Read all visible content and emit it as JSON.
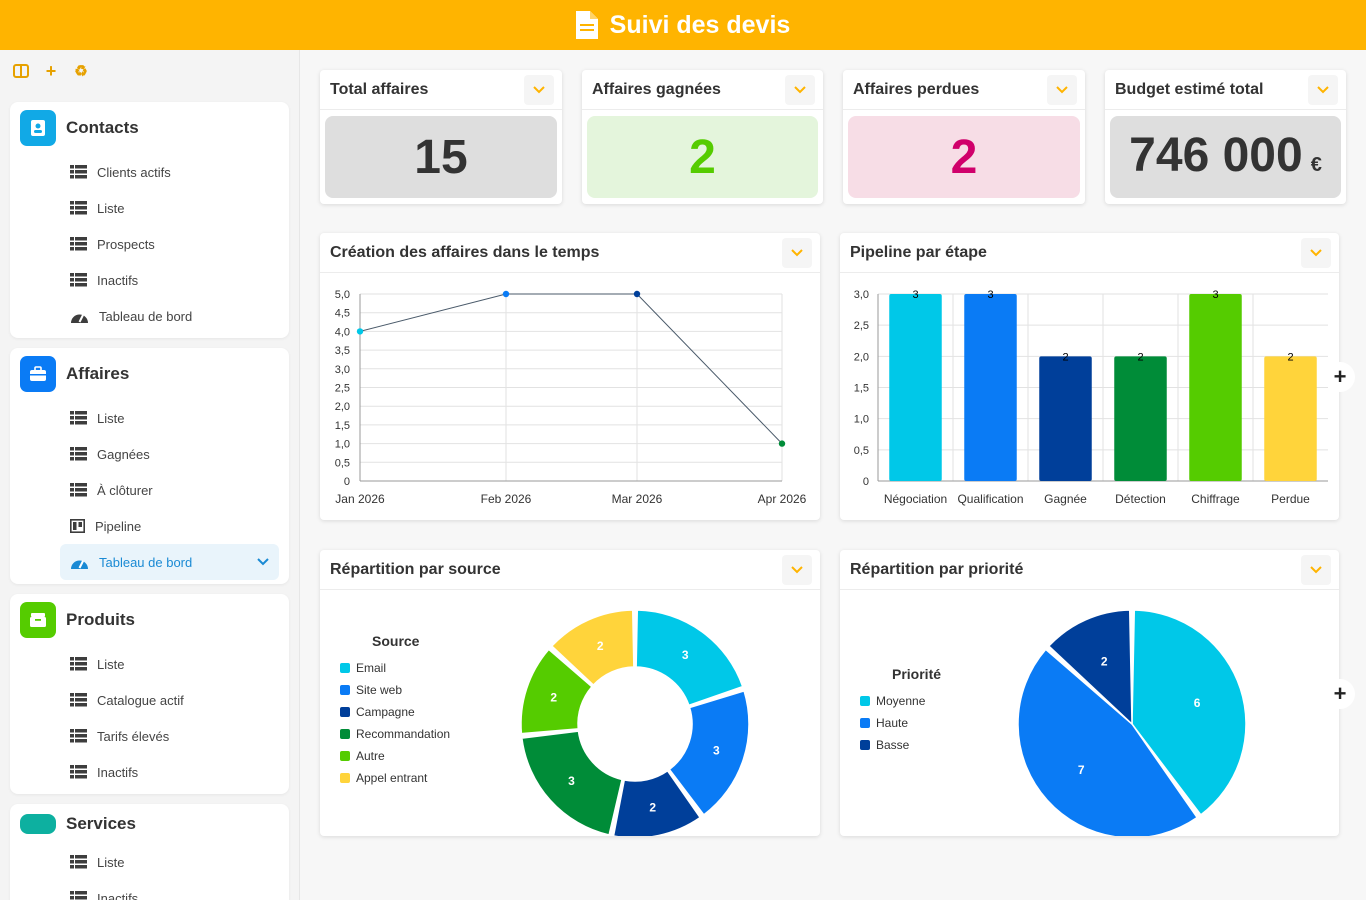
{
  "header": {
    "title": "Suivi des devis"
  },
  "sidebar": {
    "contacts": {
      "title": "Contacts",
      "items": [
        "Clients actifs",
        "Liste",
        "Prospects",
        "Inactifs"
      ],
      "dashboard": "Tableau de bord"
    },
    "affaires": {
      "title": "Affaires",
      "items": [
        "Liste",
        "Gagnées",
        "À clôturer"
      ],
      "pipeline": "Pipeline",
      "dashboard": "Tableau de bord"
    },
    "produits": {
      "title": "Produits",
      "items": [
        "Liste",
        "Catalogue actif",
        "Tarifs élevés",
        "Inactifs"
      ]
    },
    "services": {
      "title": "Services",
      "items": [
        "Liste",
        "Inactifs"
      ]
    }
  },
  "kpis": [
    {
      "label": "Total affaires",
      "value": "15"
    },
    {
      "label": "Affaires gagnées",
      "value": "2"
    },
    {
      "label": "Affaires perdues",
      "value": "2"
    },
    {
      "label": "Budget estimé total",
      "value": "746 000",
      "unit": "€"
    }
  ],
  "colors": {
    "accent": "#ffb400",
    "cyan": "#00c8e8",
    "blue": "#0a7bf5",
    "navy": "#003f9a",
    "green": "#008c38",
    "lime": "#55cc00",
    "yellow": "#ffd43b"
  },
  "chart_data": [
    {
      "type": "line",
      "title": "Création des affaires dans le temps",
      "x": [
        "Jan 2026",
        "Feb 2026",
        "Mar 2026",
        "Apr 2026"
      ],
      "values": [
        4,
        5,
        5,
        1
      ],
      "ylim": [
        0,
        5
      ],
      "yticks": [
        "0",
        "0,5",
        "1,0",
        "1,5",
        "2,0",
        "2,5",
        "3,0",
        "3,5",
        "4,0",
        "4,5",
        "5,0"
      ],
      "grid": true
    },
    {
      "type": "bar",
      "title": "Pipeline par étape",
      "categories": [
        "Négociation",
        "Qualification",
        "Gagnée",
        "Détection",
        "Chiffrage",
        "Perdue"
      ],
      "values": [
        3,
        3,
        2,
        2,
        3,
        2
      ],
      "ylim": [
        0,
        3
      ],
      "yticks": [
        "0",
        "0,5",
        "1,0",
        "1,5",
        "2,0",
        "2,5",
        "3,0"
      ],
      "grid": true
    },
    {
      "type": "pie",
      "title": "Répartition par source",
      "legend_title": "Source",
      "labels": [
        "Email",
        "Site web",
        "Campagne",
        "Recommandation",
        "Autre",
        "Appel entrant"
      ],
      "values": [
        3,
        3,
        2,
        3,
        2,
        2
      ],
      "donut": true,
      "legend": "left"
    },
    {
      "type": "pie",
      "title": "Répartition par priorité",
      "legend_title": "Priorité",
      "labels": [
        "Moyenne",
        "Haute",
        "Basse"
      ],
      "values": [
        6,
        7,
        2
      ],
      "donut": false,
      "legend": "left"
    }
  ]
}
